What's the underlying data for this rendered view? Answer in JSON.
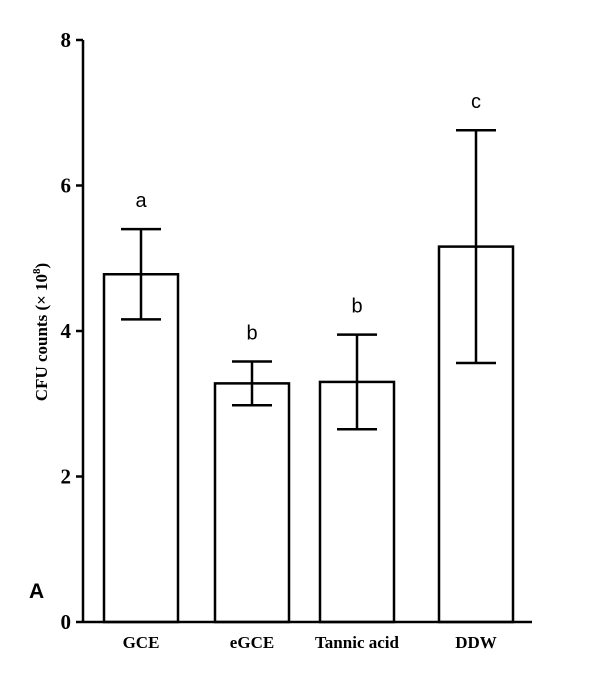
{
  "chart_data": {
    "type": "bar",
    "panel_label": "A",
    "ylabel": "CFU counts (× 10",
    "ylabel_exponent": "8",
    "ylabel_close": ")",
    "ylim": [
      0,
      8
    ],
    "yticks": [
      0,
      2,
      4,
      6,
      8
    ],
    "ytick_labels": [
      "0",
      "2",
      "4",
      "6",
      "8"
    ],
    "categories": [
      "GCE",
      "eGCE",
      "Tannic acid",
      "DDW"
    ],
    "values": [
      4.78,
      3.28,
      3.3,
      5.16
    ],
    "errors": [
      0.62,
      0.3,
      0.65,
      1.6
    ],
    "significance_letters": [
      "a",
      "b",
      "b",
      "c"
    ],
    "grid": false,
    "legend": "none"
  }
}
